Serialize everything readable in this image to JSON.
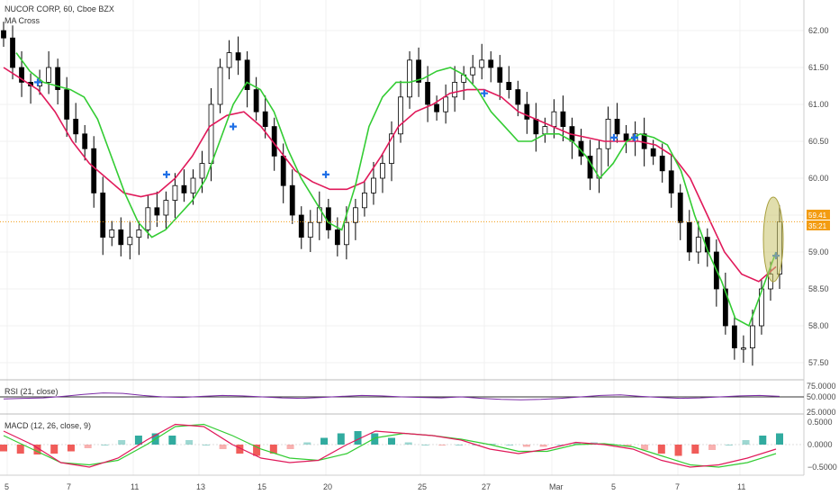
{
  "header": {
    "title": "NUCOR CORP, 60, Cboe BZX",
    "indicator": "MA Cross"
  },
  "badges": {
    "last_price": "59.41",
    "countdown": "35:21"
  },
  "colors": {
    "up": "#ffffff",
    "down": "#000000",
    "ma_fast": "#33cc33",
    "ma_slow": "#e0195a",
    "cross": "#1e6fe6",
    "price_line": "#f39c12",
    "highlight": "#c9c26a",
    "rsi": "#7b2aa6",
    "macd_line": "#e0195a",
    "signal_line": "#33cc33",
    "hist_pos": "#26a69a",
    "hist_neg": "#ef5350"
  },
  "chart_data": [
    {
      "type": "candlestick",
      "title": "NUCOR CORP, 60, Cboe BZX",
      "indicator_label": "MA Cross",
      "ylim": [
        57.2,
        62.3
      ],
      "y_ticks": [
        "62.00",
        "61.50",
        "61.00",
        "60.50",
        "60.00",
        "59.50",
        "59.00",
        "58.50",
        "58.00",
        "57.50"
      ],
      "x_ticks": [
        "5",
        "7",
        "11",
        "13",
        "15",
        "20",
        "25",
        "27",
        "Mar",
        "5",
        "7",
        "11"
      ],
      "last_price": 59.41,
      "series": [
        {
          "name": "close",
          "values": [
            61.9,
            61.5,
            61.3,
            61.25,
            61.3,
            61.5,
            61.2,
            60.8,
            60.6,
            60.4,
            59.8,
            59.2,
            59.3,
            59.1,
            59.2,
            59.3,
            59.6,
            59.5,
            59.7,
            59.9,
            59.8,
            60.0,
            60.2,
            61.0,
            61.5,
            61.7,
            61.6,
            61.2,
            60.9,
            60.7,
            60.3,
            59.9,
            59.5,
            59.2,
            59.4,
            59.6,
            59.3,
            59.1,
            59.4,
            59.6,
            59.8,
            60.0,
            60.2,
            60.6,
            61.1,
            61.6,
            61.3,
            61.0,
            60.9,
            61.1,
            61.3,
            61.4,
            61.5,
            61.6,
            61.5,
            61.3,
            61.2,
            61.0,
            60.8,
            60.6,
            60.7,
            60.9,
            60.7,
            60.5,
            60.3,
            60.0,
            60.4,
            60.8,
            60.6,
            60.5,
            60.6,
            60.4,
            60.3,
            60.1,
            59.8,
            59.4,
            59.0,
            59.2,
            59.0,
            58.5,
            58.0,
            57.7,
            57.7,
            58.0,
            58.5,
            58.7,
            59.41
          ]
        },
        {
          "name": "ma_fast",
          "values": [
            61.7,
            61.45,
            61.3,
            61.25,
            61.2,
            61.1,
            60.8,
            60.3,
            59.8,
            59.4,
            59.2,
            59.3,
            59.5,
            59.7,
            60.0,
            60.5,
            61.0,
            61.3,
            61.2,
            60.9,
            60.4,
            60.0,
            59.7,
            59.4,
            59.3,
            59.9,
            60.7,
            61.1,
            61.3,
            61.3,
            61.35,
            61.45,
            61.5,
            61.4,
            61.2,
            60.9,
            60.7,
            60.5,
            60.5,
            60.6,
            60.6,
            60.5,
            60.3,
            60.0,
            60.2,
            60.5,
            60.6,
            60.55,
            60.45,
            60.1,
            59.5,
            59.0,
            58.6,
            58.1,
            58.0,
            58.5,
            59.0
          ]
        },
        {
          "name": "ma_slow",
          "values": [
            61.5,
            61.35,
            61.2,
            60.9,
            60.5,
            60.2,
            60.0,
            59.8,
            59.75,
            59.8,
            60.0,
            60.3,
            60.7,
            60.85,
            60.9,
            60.7,
            60.4,
            60.1,
            59.95,
            59.85,
            59.85,
            59.95,
            60.3,
            60.7,
            60.9,
            61.0,
            61.15,
            61.2,
            61.2,
            61.1,
            60.9,
            60.8,
            60.7,
            60.6,
            60.55,
            60.5,
            60.5,
            60.5,
            60.45,
            60.3,
            60.0,
            59.5,
            59.0,
            58.7,
            58.6,
            58.8
          ]
        }
      ]
    },
    {
      "type": "line",
      "label": "RSI (21, close)",
      "y_ticks": [
        "75.0000",
        "50.0000",
        "25.0000"
      ],
      "series": [
        {
          "name": "rsi",
          "values": [
            46,
            47,
            48,
            51,
            55,
            58,
            57,
            53,
            50,
            49,
            51,
            53,
            52,
            50,
            48,
            47,
            49,
            51,
            53,
            52,
            50,
            49,
            48,
            50,
            47,
            45,
            44,
            45,
            47,
            50,
            53,
            54,
            51,
            49,
            47,
            48,
            50,
            52,
            53,
            51
          ]
        }
      ]
    },
    {
      "type": "bar+line",
      "label": "MACD (12, 26, close, 9)",
      "y_ticks": [
        "0.5000",
        "0.0000",
        "−0.5000"
      ],
      "series": [
        {
          "name": "histogram",
          "values": [
            -0.15,
            -0.2,
            -0.22,
            -0.2,
            -0.15,
            -0.08,
            0.0,
            0.1,
            0.2,
            0.25,
            0.2,
            0.1,
            0.0,
            -0.1,
            -0.2,
            -0.25,
            -0.2,
            -0.1,
            0.05,
            0.15,
            0.25,
            0.3,
            0.25,
            0.15,
            0.05,
            0.0,
            -0.02,
            0.0,
            0.0,
            0.02,
            0.0,
            -0.05,
            -0.05,
            0.0,
            0.05,
            0.05,
            0.02,
            -0.05,
            -0.12,
            -0.2,
            -0.25,
            -0.2,
            -0.12,
            0.0,
            0.1,
            0.2,
            0.25
          ]
        },
        {
          "name": "macd",
          "values": [
            0.3,
            0.0,
            -0.4,
            -0.5,
            -0.3,
            0.1,
            0.45,
            0.4,
            0.0,
            -0.3,
            -0.4,
            -0.35,
            0.0,
            0.3,
            0.25,
            0.2,
            0.1,
            -0.1,
            -0.2,
            -0.1,
            0.05,
            0.0,
            -0.1,
            -0.35,
            -0.5,
            -0.45,
            -0.3,
            -0.1
          ]
        },
        {
          "name": "signal",
          "values": [
            0.2,
            -0.1,
            -0.4,
            -0.45,
            -0.35,
            0.0,
            0.4,
            0.45,
            0.2,
            -0.1,
            -0.3,
            -0.35,
            -0.2,
            0.15,
            0.25,
            0.2,
            0.12,
            0.0,
            -0.15,
            -0.15,
            0.0,
            0.02,
            -0.05,
            -0.25,
            -0.45,
            -0.5,
            -0.4,
            -0.2
          ]
        }
      ]
    }
  ]
}
